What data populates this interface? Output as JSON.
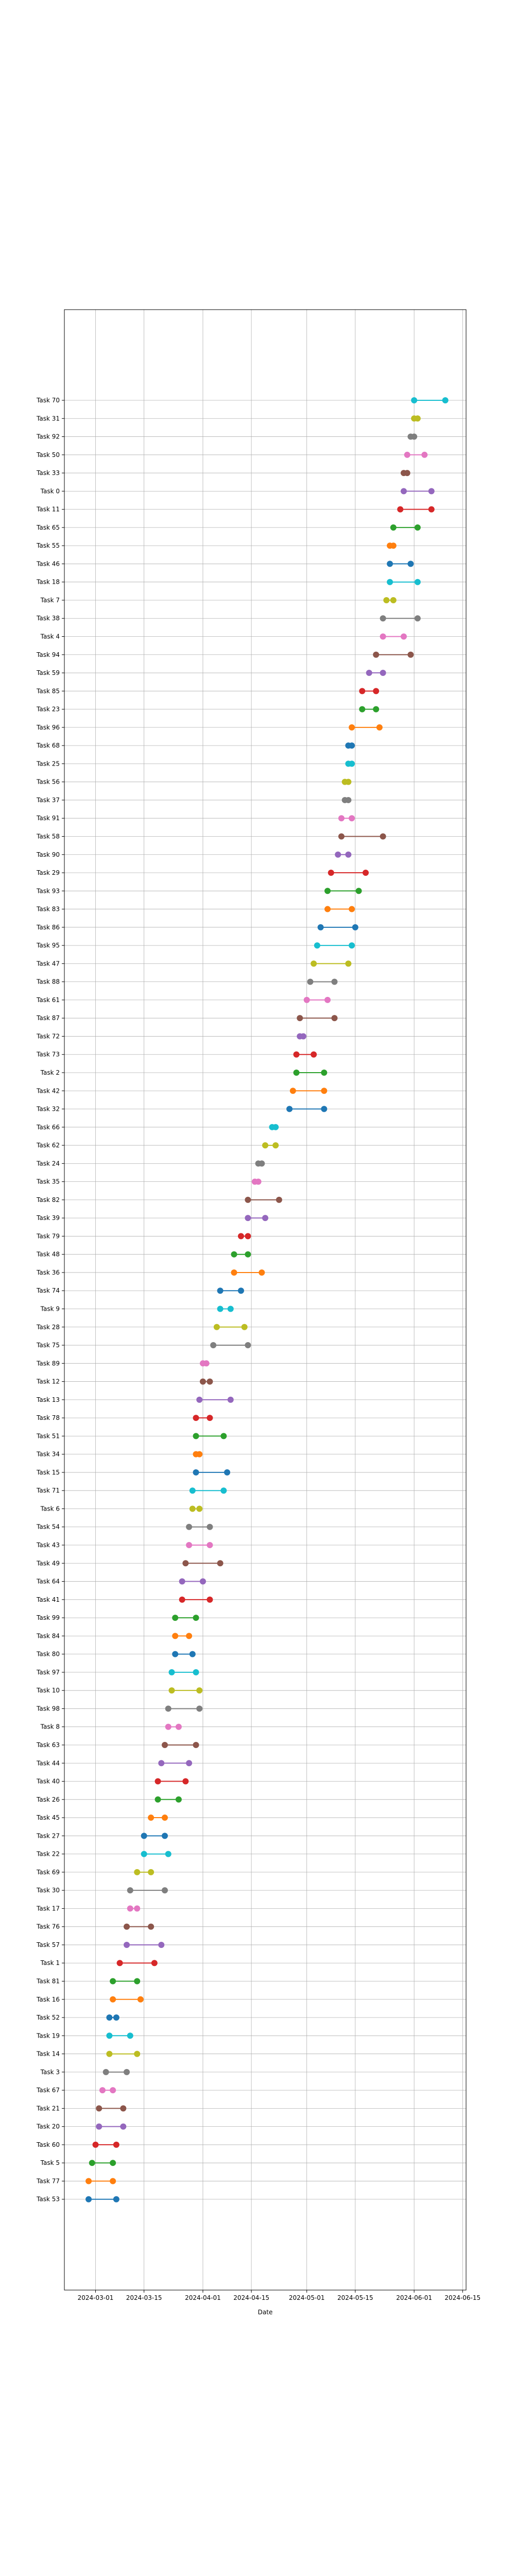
{
  "chart_data": {
    "type": "dumbbell",
    "xlabel": "Date",
    "x_ticks": [
      "2024-03-01",
      "2024-03-15",
      "2024-04-01",
      "2024-04-15",
      "2024-05-01",
      "2024-05-15",
      "2024-06-01",
      "2024-06-15"
    ],
    "xlim": [
      "2024-02-21",
      "2024-06-16"
    ],
    "grid": true,
    "tasks": [
      {
        "name": "Task 70",
        "start": "2024-06-01",
        "end": "2024-06-10",
        "color": "#17becf"
      },
      {
        "name": "Task 31",
        "start": "2024-06-01",
        "end": "2024-06-02",
        "color": "#bcbd22"
      },
      {
        "name": "Task 92",
        "start": "2024-05-31",
        "end": "2024-06-01",
        "color": "#7f7f7f"
      },
      {
        "name": "Task 50",
        "start": "2024-05-30",
        "end": "2024-06-04",
        "color": "#e377c2"
      },
      {
        "name": "Task 33",
        "start": "2024-05-29",
        "end": "2024-05-30",
        "color": "#8c564b"
      },
      {
        "name": "Task 0",
        "start": "2024-05-29",
        "end": "2024-06-06",
        "color": "#9467bd"
      },
      {
        "name": "Task 11",
        "start": "2024-05-28",
        "end": "2024-06-06",
        "color": "#d62728"
      },
      {
        "name": "Task 65",
        "start": "2024-05-26",
        "end": "2024-06-02",
        "color": "#2ca02c"
      },
      {
        "name": "Task 55",
        "start": "2024-05-25",
        "end": "2024-05-26",
        "color": "#ff7f0e"
      },
      {
        "name": "Task 46",
        "start": "2024-05-25",
        "end": "2024-05-31",
        "color": "#1f77b4"
      },
      {
        "name": "Task 18",
        "start": "2024-05-25",
        "end": "2024-06-02",
        "color": "#17becf"
      },
      {
        "name": "Task 7",
        "start": "2024-05-24",
        "end": "2024-05-26",
        "color": "#bcbd22"
      },
      {
        "name": "Task 38",
        "start": "2024-05-23",
        "end": "2024-06-02",
        "color": "#7f7f7f"
      },
      {
        "name": "Task 4",
        "start": "2024-05-23",
        "end": "2024-05-29",
        "color": "#e377c2"
      },
      {
        "name": "Task 94",
        "start": "2024-05-21",
        "end": "2024-05-31",
        "color": "#8c564b"
      },
      {
        "name": "Task 59",
        "start": "2024-05-19",
        "end": "2024-05-23",
        "color": "#9467bd"
      },
      {
        "name": "Task 85",
        "start": "2024-05-17",
        "end": "2024-05-21",
        "color": "#d62728"
      },
      {
        "name": "Task 23",
        "start": "2024-05-17",
        "end": "2024-05-21",
        "color": "#2ca02c"
      },
      {
        "name": "Task 96",
        "start": "2024-05-14",
        "end": "2024-05-22",
        "color": "#ff7f0e"
      },
      {
        "name": "Task 68",
        "start": "2024-05-13",
        "end": "2024-05-14",
        "color": "#1f77b4"
      },
      {
        "name": "Task 25",
        "start": "2024-05-13",
        "end": "2024-05-14",
        "color": "#17becf"
      },
      {
        "name": "Task 56",
        "start": "2024-05-12",
        "end": "2024-05-13",
        "color": "#bcbd22"
      },
      {
        "name": "Task 37",
        "start": "2024-05-12",
        "end": "2024-05-13",
        "color": "#7f7f7f"
      },
      {
        "name": "Task 91",
        "start": "2024-05-11",
        "end": "2024-05-14",
        "color": "#e377c2"
      },
      {
        "name": "Task 58",
        "start": "2024-05-11",
        "end": "2024-05-23",
        "color": "#8c564b"
      },
      {
        "name": "Task 90",
        "start": "2024-05-10",
        "end": "2024-05-13",
        "color": "#9467bd"
      },
      {
        "name": "Task 29",
        "start": "2024-05-08",
        "end": "2024-05-18",
        "color": "#d62728"
      },
      {
        "name": "Task 93",
        "start": "2024-05-07",
        "end": "2024-05-16",
        "color": "#2ca02c"
      },
      {
        "name": "Task 83",
        "start": "2024-05-07",
        "end": "2024-05-14",
        "color": "#ff7f0e"
      },
      {
        "name": "Task 86",
        "start": "2024-05-05",
        "end": "2024-05-15",
        "color": "#1f77b4"
      },
      {
        "name": "Task 95",
        "start": "2024-05-04",
        "end": "2024-05-14",
        "color": "#17becf"
      },
      {
        "name": "Task 47",
        "start": "2024-05-03",
        "end": "2024-05-13",
        "color": "#bcbd22"
      },
      {
        "name": "Task 88",
        "start": "2024-05-02",
        "end": "2024-05-09",
        "color": "#7f7f7f"
      },
      {
        "name": "Task 61",
        "start": "2024-05-01",
        "end": "2024-05-07",
        "color": "#e377c2"
      },
      {
        "name": "Task 87",
        "start": "2024-04-29",
        "end": "2024-05-09",
        "color": "#8c564b"
      },
      {
        "name": "Task 72",
        "start": "2024-04-29",
        "end": "2024-04-30",
        "color": "#9467bd"
      },
      {
        "name": "Task 73",
        "start": "2024-04-28",
        "end": "2024-05-03",
        "color": "#d62728"
      },
      {
        "name": "Task 2",
        "start": "2024-04-28",
        "end": "2024-05-06",
        "color": "#2ca02c"
      },
      {
        "name": "Task 42",
        "start": "2024-04-27",
        "end": "2024-05-06",
        "color": "#ff7f0e"
      },
      {
        "name": "Task 32",
        "start": "2024-04-26",
        "end": "2024-05-06",
        "color": "#1f77b4"
      },
      {
        "name": "Task 66",
        "start": "2024-04-21",
        "end": "2024-04-22",
        "color": "#17becf"
      },
      {
        "name": "Task 62",
        "start": "2024-04-19",
        "end": "2024-04-22",
        "color": "#bcbd22"
      },
      {
        "name": "Task 24",
        "start": "2024-04-17",
        "end": "2024-04-18",
        "color": "#7f7f7f"
      },
      {
        "name": "Task 35",
        "start": "2024-04-16",
        "end": "2024-04-17",
        "color": "#e377c2"
      },
      {
        "name": "Task 82",
        "start": "2024-04-14",
        "end": "2024-04-23",
        "color": "#8c564b"
      },
      {
        "name": "Task 39",
        "start": "2024-04-14",
        "end": "2024-04-19",
        "color": "#9467bd"
      },
      {
        "name": "Task 79",
        "start": "2024-04-12",
        "end": "2024-04-14",
        "color": "#d62728"
      },
      {
        "name": "Task 48",
        "start": "2024-04-10",
        "end": "2024-04-14",
        "color": "#2ca02c"
      },
      {
        "name": "Task 36",
        "start": "2024-04-10",
        "end": "2024-04-18",
        "color": "#ff7f0e"
      },
      {
        "name": "Task 74",
        "start": "2024-04-06",
        "end": "2024-04-12",
        "color": "#1f77b4"
      },
      {
        "name": "Task 9",
        "start": "2024-04-06",
        "end": "2024-04-09",
        "color": "#17becf"
      },
      {
        "name": "Task 28",
        "start": "2024-04-05",
        "end": "2024-04-13",
        "color": "#bcbd22"
      },
      {
        "name": "Task 75",
        "start": "2024-04-04",
        "end": "2024-04-14",
        "color": "#7f7f7f"
      },
      {
        "name": "Task 89",
        "start": "2024-04-01",
        "end": "2024-04-02",
        "color": "#e377c2"
      },
      {
        "name": "Task 12",
        "start": "2024-04-01",
        "end": "2024-04-03",
        "color": "#8c564b"
      },
      {
        "name": "Task 13",
        "start": "2024-03-31",
        "end": "2024-04-09",
        "color": "#9467bd"
      },
      {
        "name": "Task 78",
        "start": "2024-03-30",
        "end": "2024-04-03",
        "color": "#d62728"
      },
      {
        "name": "Task 51",
        "start": "2024-03-30",
        "end": "2024-04-07",
        "color": "#2ca02c"
      },
      {
        "name": "Task 34",
        "start": "2024-03-30",
        "end": "2024-03-31",
        "color": "#ff7f0e"
      },
      {
        "name": "Task 15",
        "start": "2024-03-30",
        "end": "2024-04-08",
        "color": "#1f77b4"
      },
      {
        "name": "Task 71",
        "start": "2024-03-29",
        "end": "2024-04-07",
        "color": "#17becf"
      },
      {
        "name": "Task 6",
        "start": "2024-03-29",
        "end": "2024-03-31",
        "color": "#bcbd22"
      },
      {
        "name": "Task 54",
        "start": "2024-03-28",
        "end": "2024-04-03",
        "color": "#7f7f7f"
      },
      {
        "name": "Task 43",
        "start": "2024-03-28",
        "end": "2024-04-03",
        "color": "#e377c2"
      },
      {
        "name": "Task 49",
        "start": "2024-03-27",
        "end": "2024-04-06",
        "color": "#8c564b"
      },
      {
        "name": "Task 64",
        "start": "2024-03-26",
        "end": "2024-04-01",
        "color": "#9467bd"
      },
      {
        "name": "Task 41",
        "start": "2024-03-26",
        "end": "2024-04-03",
        "color": "#d62728"
      },
      {
        "name": "Task 99",
        "start": "2024-03-24",
        "end": "2024-03-30",
        "color": "#2ca02c"
      },
      {
        "name": "Task 84",
        "start": "2024-03-24",
        "end": "2024-03-28",
        "color": "#ff7f0e"
      },
      {
        "name": "Task 80",
        "start": "2024-03-24",
        "end": "2024-03-29",
        "color": "#1f77b4"
      },
      {
        "name": "Task 97",
        "start": "2024-03-23",
        "end": "2024-03-30",
        "color": "#17becf"
      },
      {
        "name": "Task 10",
        "start": "2024-03-23",
        "end": "2024-03-31",
        "color": "#bcbd22"
      },
      {
        "name": "Task 98",
        "start": "2024-03-22",
        "end": "2024-03-31",
        "color": "#7f7f7f"
      },
      {
        "name": "Task 8",
        "start": "2024-03-22",
        "end": "2024-03-25",
        "color": "#e377c2"
      },
      {
        "name": "Task 63",
        "start": "2024-03-21",
        "end": "2024-03-30",
        "color": "#8c564b"
      },
      {
        "name": "Task 44",
        "start": "2024-03-20",
        "end": "2024-03-28",
        "color": "#9467bd"
      },
      {
        "name": "Task 40",
        "start": "2024-03-19",
        "end": "2024-03-27",
        "color": "#d62728"
      },
      {
        "name": "Task 26",
        "start": "2024-03-19",
        "end": "2024-03-25",
        "color": "#2ca02c"
      },
      {
        "name": "Task 45",
        "start": "2024-03-17",
        "end": "2024-03-21",
        "color": "#ff7f0e"
      },
      {
        "name": "Task 27",
        "start": "2024-03-15",
        "end": "2024-03-21",
        "color": "#1f77b4"
      },
      {
        "name": "Task 22",
        "start": "2024-03-15",
        "end": "2024-03-22",
        "color": "#17becf"
      },
      {
        "name": "Task 69",
        "start": "2024-03-13",
        "end": "2024-03-17",
        "color": "#bcbd22"
      },
      {
        "name": "Task 30",
        "start": "2024-03-11",
        "end": "2024-03-21",
        "color": "#7f7f7f"
      },
      {
        "name": "Task 17",
        "start": "2024-03-11",
        "end": "2024-03-13",
        "color": "#e377c2"
      },
      {
        "name": "Task 76",
        "start": "2024-03-10",
        "end": "2024-03-17",
        "color": "#8c564b"
      },
      {
        "name": "Task 57",
        "start": "2024-03-10",
        "end": "2024-03-20",
        "color": "#9467bd"
      },
      {
        "name": "Task 1",
        "start": "2024-03-08",
        "end": "2024-03-18",
        "color": "#d62728"
      },
      {
        "name": "Task 81",
        "start": "2024-03-06",
        "end": "2024-03-13",
        "color": "#2ca02c"
      },
      {
        "name": "Task 16",
        "start": "2024-03-06",
        "end": "2024-03-14",
        "color": "#ff7f0e"
      },
      {
        "name": "Task 52",
        "start": "2024-03-05",
        "end": "2024-03-07",
        "color": "#1f77b4"
      },
      {
        "name": "Task 19",
        "start": "2024-03-05",
        "end": "2024-03-11",
        "color": "#17becf"
      },
      {
        "name": "Task 14",
        "start": "2024-03-05",
        "end": "2024-03-13",
        "color": "#bcbd22"
      },
      {
        "name": "Task 3",
        "start": "2024-03-04",
        "end": "2024-03-10",
        "color": "#7f7f7f"
      },
      {
        "name": "Task 67",
        "start": "2024-03-03",
        "end": "2024-03-06",
        "color": "#e377c2"
      },
      {
        "name": "Task 21",
        "start": "2024-03-02",
        "end": "2024-03-09",
        "color": "#8c564b"
      },
      {
        "name": "Task 20",
        "start": "2024-03-02",
        "end": "2024-03-09",
        "color": "#9467bd"
      },
      {
        "name": "Task 60",
        "start": "2024-03-01",
        "end": "2024-03-07",
        "color": "#d62728"
      },
      {
        "name": "Task 5",
        "start": "2024-02-29",
        "end": "2024-03-06",
        "color": "#2ca02c"
      },
      {
        "name": "Task 77",
        "start": "2024-02-28",
        "end": "2024-03-06",
        "color": "#ff7f0e"
      },
      {
        "name": "Task 53",
        "start": "2024-02-28",
        "end": "2024-03-07",
        "color": "#1f77b4"
      }
    ]
  }
}
